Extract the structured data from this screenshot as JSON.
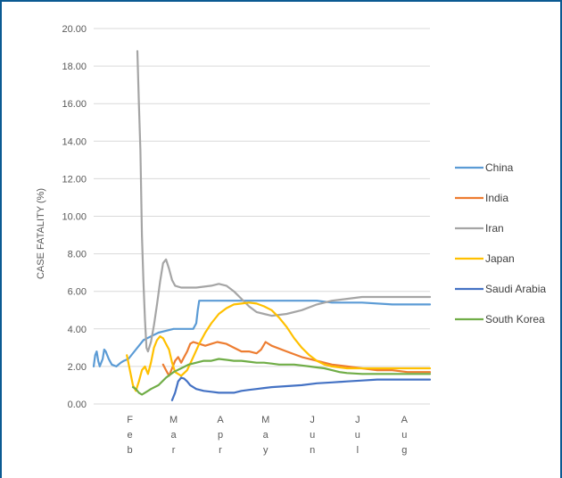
{
  "chart_data": {
    "type": "line",
    "title": "",
    "xlabel": "",
    "ylabel": "CASE FATALITY (%)",
    "ylim": [
      0,
      20
    ],
    "yticks": [
      "0.00",
      "2.00",
      "4.00",
      "6.00",
      "8.00",
      "10.00",
      "12.00",
      "14.00",
      "16.00",
      "18.00",
      "20.00"
    ],
    "x_unit": "day since 1 Jan 2020",
    "xlim": [
      22,
      245
    ],
    "month_labels": [
      {
        "x": 46,
        "letters": [
          "F",
          "e",
          "b"
        ]
      },
      {
        "x": 75,
        "letters": [
          "M",
          "a",
          "r"
        ]
      },
      {
        "x": 106,
        "letters": [
          "A",
          "p",
          "r"
        ]
      },
      {
        "x": 136,
        "letters": [
          "M",
          "a",
          "y"
        ]
      },
      {
        "x": 167,
        "letters": [
          "J",
          "u",
          "n"
        ]
      },
      {
        "x": 197,
        "letters": [
          "J",
          "u",
          "l"
        ]
      },
      {
        "x": 228,
        "letters": [
          "A",
          "u",
          "g"
        ]
      }
    ],
    "legend_position": "right",
    "series": [
      {
        "name": "China",
        "color": "#5b9bd5",
        "points": [
          [
            22,
            2.0
          ],
          [
            23,
            2.6
          ],
          [
            24,
            2.8
          ],
          [
            25,
            2.3
          ],
          [
            26,
            2.0
          ],
          [
            28,
            2.4
          ],
          [
            29,
            2.9
          ],
          [
            30,
            2.8
          ],
          [
            32,
            2.4
          ],
          [
            34,
            2.1
          ],
          [
            37,
            2.0
          ],
          [
            40,
            2.2
          ],
          [
            42,
            2.3
          ],
          [
            45,
            2.4
          ],
          [
            50,
            2.9
          ],
          [
            55,
            3.4
          ],
          [
            60,
            3.6
          ],
          [
            65,
            3.8
          ],
          [
            70,
            3.9
          ],
          [
            75,
            4.0
          ],
          [
            80,
            4.0
          ],
          [
            85,
            4.0
          ],
          [
            88,
            4.0
          ],
          [
            90,
            4.3
          ],
          [
            91,
            5.0
          ],
          [
            92,
            5.5
          ],
          [
            100,
            5.5
          ],
          [
            120,
            5.5
          ],
          [
            150,
            5.5
          ],
          [
            170,
            5.5
          ],
          [
            180,
            5.4
          ],
          [
            200,
            5.4
          ],
          [
            220,
            5.3
          ],
          [
            245,
            5.3
          ]
        ]
      },
      {
        "name": "India",
        "color": "#ed7d31",
        "points": [
          [
            68,
            2.1
          ],
          [
            70,
            1.8
          ],
          [
            72,
            1.5
          ],
          [
            74,
            1.9
          ],
          [
            76,
            2.3
          ],
          [
            78,
            2.5
          ],
          [
            80,
            2.2
          ],
          [
            82,
            2.5
          ],
          [
            84,
            2.8
          ],
          [
            86,
            3.2
          ],
          [
            88,
            3.3
          ],
          [
            92,
            3.2
          ],
          [
            96,
            3.1
          ],
          [
            100,
            3.2
          ],
          [
            104,
            3.3
          ],
          [
            110,
            3.2
          ],
          [
            115,
            3.0
          ],
          [
            120,
            2.8
          ],
          [
            125,
            2.8
          ],
          [
            130,
            2.7
          ],
          [
            133,
            2.9
          ],
          [
            136,
            3.3
          ],
          [
            140,
            3.1
          ],
          [
            150,
            2.8
          ],
          [
            160,
            2.5
          ],
          [
            170,
            2.3
          ],
          [
            180,
            2.1
          ],
          [
            190,
            2.0
          ],
          [
            200,
            1.9
          ],
          [
            210,
            1.8
          ],
          [
            220,
            1.8
          ],
          [
            230,
            1.7
          ],
          [
            245,
            1.7
          ]
        ]
      },
      {
        "name": "Iran",
        "color": "#a5a5a5",
        "points": [
          [
            51,
            18.8
          ],
          [
            52,
            16.0
          ],
          [
            53,
            13.5
          ],
          [
            54,
            9.0
          ],
          [
            55,
            6.5
          ],
          [
            56,
            4.5
          ],
          [
            57,
            3.0
          ],
          [
            58,
            2.8
          ],
          [
            60,
            3.3
          ],
          [
            62,
            4.2
          ],
          [
            64,
            5.3
          ],
          [
            66,
            6.5
          ],
          [
            68,
            7.5
          ],
          [
            70,
            7.7
          ],
          [
            72,
            7.2
          ],
          [
            74,
            6.6
          ],
          [
            76,
            6.3
          ],
          [
            80,
            6.2
          ],
          [
            90,
            6.2
          ],
          [
            100,
            6.3
          ],
          [
            105,
            6.4
          ],
          [
            110,
            6.3
          ],
          [
            115,
            6.0
          ],
          [
            120,
            5.6
          ],
          [
            125,
            5.2
          ],
          [
            130,
            4.9
          ],
          [
            135,
            4.8
          ],
          [
            140,
            4.7
          ],
          [
            150,
            4.8
          ],
          [
            160,
            5.0
          ],
          [
            170,
            5.3
          ],
          [
            180,
            5.5
          ],
          [
            190,
            5.6
          ],
          [
            200,
            5.7
          ],
          [
            210,
            5.7
          ],
          [
            220,
            5.7
          ],
          [
            245,
            5.7
          ]
        ]
      },
      {
        "name": "Japan",
        "color": "#ffc000",
        "points": [
          [
            44,
            2.6
          ],
          [
            46,
            1.8
          ],
          [
            48,
            1.0
          ],
          [
            50,
            0.7
          ],
          [
            52,
            1.2
          ],
          [
            54,
            1.8
          ],
          [
            56,
            2.0
          ],
          [
            58,
            1.6
          ],
          [
            60,
            2.2
          ],
          [
            62,
            3.0
          ],
          [
            64,
            3.4
          ],
          [
            66,
            3.6
          ],
          [
            68,
            3.5
          ],
          [
            70,
            3.2
          ],
          [
            72,
            2.9
          ],
          [
            74,
            2.2
          ],
          [
            76,
            1.7
          ],
          [
            80,
            1.5
          ],
          [
            84,
            1.8
          ],
          [
            88,
            2.5
          ],
          [
            92,
            3.2
          ],
          [
            96,
            3.8
          ],
          [
            100,
            4.3
          ],
          [
            105,
            4.8
          ],
          [
            110,
            5.1
          ],
          [
            115,
            5.3
          ],
          [
            120,
            5.35
          ],
          [
            125,
            5.4
          ],
          [
            130,
            5.35
          ],
          [
            135,
            5.2
          ],
          [
            140,
            5.0
          ],
          [
            145,
            4.6
          ],
          [
            150,
            4.1
          ],
          [
            155,
            3.5
          ],
          [
            160,
            3.0
          ],
          [
            165,
            2.6
          ],
          [
            170,
            2.3
          ],
          [
            175,
            2.1
          ],
          [
            180,
            2.0
          ],
          [
            190,
            1.9
          ],
          [
            200,
            1.9
          ],
          [
            210,
            1.9
          ],
          [
            220,
            1.9
          ],
          [
            245,
            1.9
          ]
        ]
      },
      {
        "name": "Saudi Arabia",
        "color": "#4472c4",
        "points": [
          [
            74,
            0.2
          ],
          [
            75,
            0.4
          ],
          [
            76,
            0.6
          ],
          [
            78,
            1.2
          ],
          [
            80,
            1.4
          ],
          [
            82,
            1.35
          ],
          [
            84,
            1.2
          ],
          [
            86,
            1.0
          ],
          [
            88,
            0.9
          ],
          [
            90,
            0.8
          ],
          [
            95,
            0.7
          ],
          [
            100,
            0.65
          ],
          [
            105,
            0.6
          ],
          [
            110,
            0.6
          ],
          [
            115,
            0.6
          ],
          [
            120,
            0.7
          ],
          [
            125,
            0.75
          ],
          [
            130,
            0.8
          ],
          [
            135,
            0.85
          ],
          [
            140,
            0.9
          ],
          [
            150,
            0.95
          ],
          [
            160,
            1.0
          ],
          [
            170,
            1.1
          ],
          [
            180,
            1.15
          ],
          [
            190,
            1.2
          ],
          [
            200,
            1.25
          ],
          [
            210,
            1.3
          ],
          [
            245,
            1.3
          ]
        ]
      },
      {
        "name": "South Korea",
        "color": "#70ad47",
        "points": [
          [
            48,
            0.9
          ],
          [
            50,
            0.8
          ],
          [
            52,
            0.6
          ],
          [
            54,
            0.5
          ],
          [
            56,
            0.6
          ],
          [
            58,
            0.7
          ],
          [
            60,
            0.8
          ],
          [
            65,
            1.0
          ],
          [
            70,
            1.4
          ],
          [
            75,
            1.7
          ],
          [
            80,
            1.9
          ],
          [
            85,
            2.1
          ],
          [
            90,
            2.2
          ],
          [
            95,
            2.3
          ],
          [
            100,
            2.3
          ],
          [
            105,
            2.4
          ],
          [
            110,
            2.35
          ],
          [
            115,
            2.3
          ],
          [
            120,
            2.3
          ],
          [
            125,
            2.25
          ],
          [
            130,
            2.2
          ],
          [
            135,
            2.2
          ],
          [
            140,
            2.15
          ],
          [
            145,
            2.1
          ],
          [
            150,
            2.1
          ],
          [
            155,
            2.1
          ],
          [
            160,
            2.05
          ],
          [
            165,
            2.0
          ],
          [
            170,
            1.95
          ],
          [
            175,
            1.9
          ],
          [
            180,
            1.8
          ],
          [
            185,
            1.7
          ],
          [
            190,
            1.65
          ],
          [
            200,
            1.6
          ],
          [
            210,
            1.6
          ],
          [
            245,
            1.6
          ]
        ]
      }
    ]
  }
}
